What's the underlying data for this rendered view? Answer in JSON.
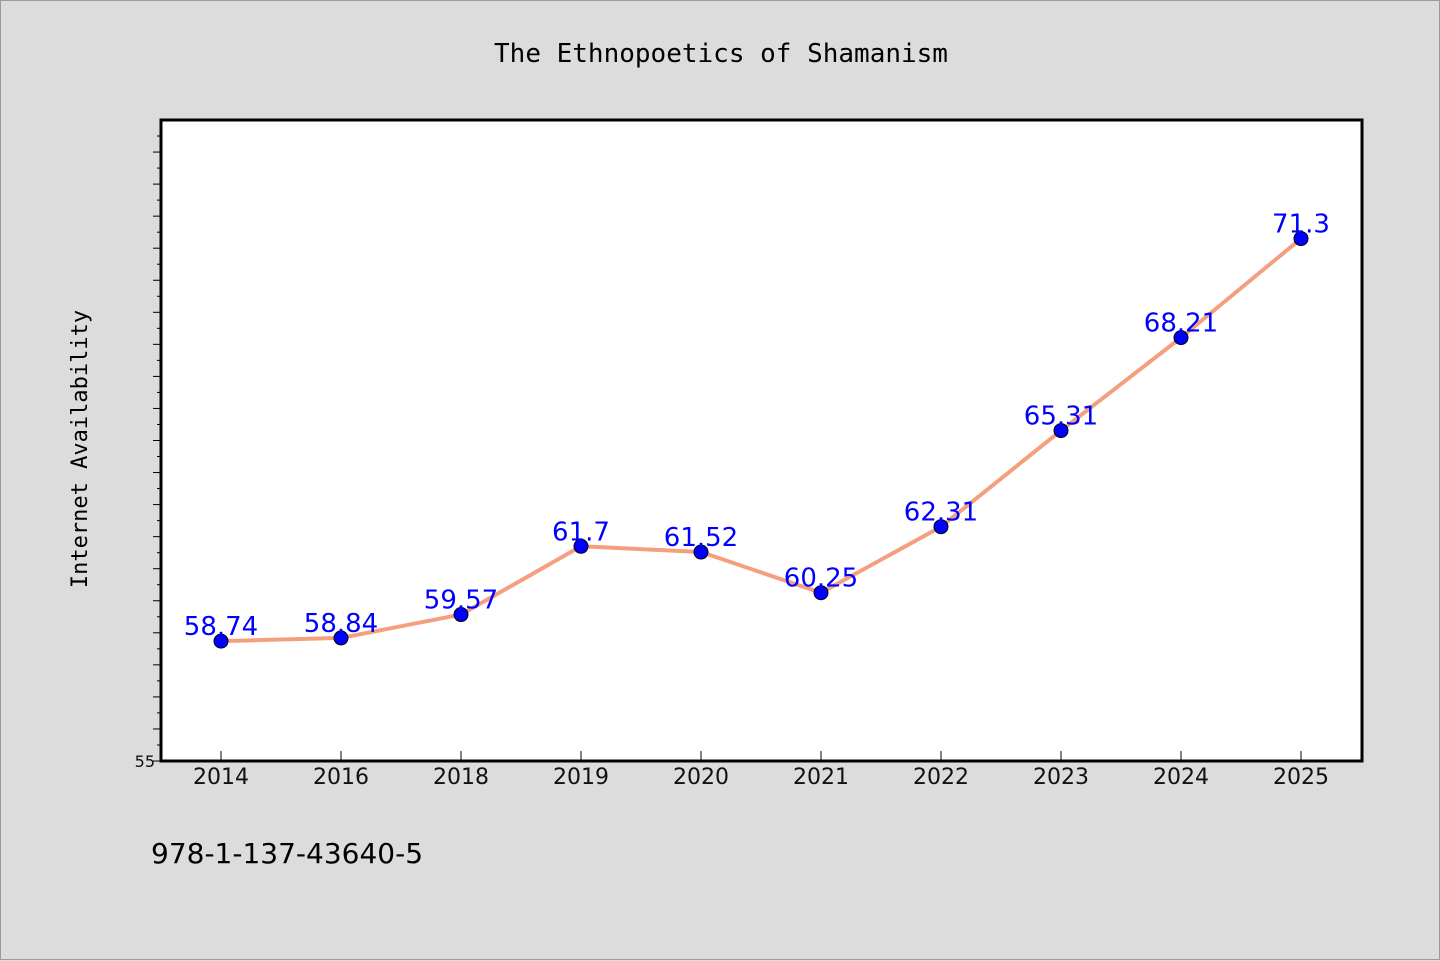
{
  "chart_data": {
    "type": "line",
    "title": "The Ethnopoetics of Shamanism",
    "ylabel": "Internet Availability",
    "xlabel": "",
    "categories": [
      "2014",
      "2016",
      "2018",
      "2019",
      "2020",
      "2021",
      "2022",
      "2023",
      "2024",
      "2025"
    ],
    "series": [
      {
        "values": [
          58.74,
          58.84,
          59.57,
          61.7,
          61.52,
          60.25,
          62.31,
          65.31,
          68.21,
          71.3
        ],
        "labels": [
          "58.74",
          "58.84",
          "59.57",
          "61.7",
          "61.52",
          "60.25",
          "62.31",
          "65.31",
          "68.21",
          "71.3"
        ]
      }
    ],
    "ylim": [
      55,
      75
    ],
    "yticks_labeled": [
      "55"
    ],
    "grid": false,
    "line_color": "#f4a07e",
    "marker_color": "#0000ff",
    "label_color": "#0000ff"
  },
  "footer": {
    "text": "978-1-137-43640-5"
  }
}
